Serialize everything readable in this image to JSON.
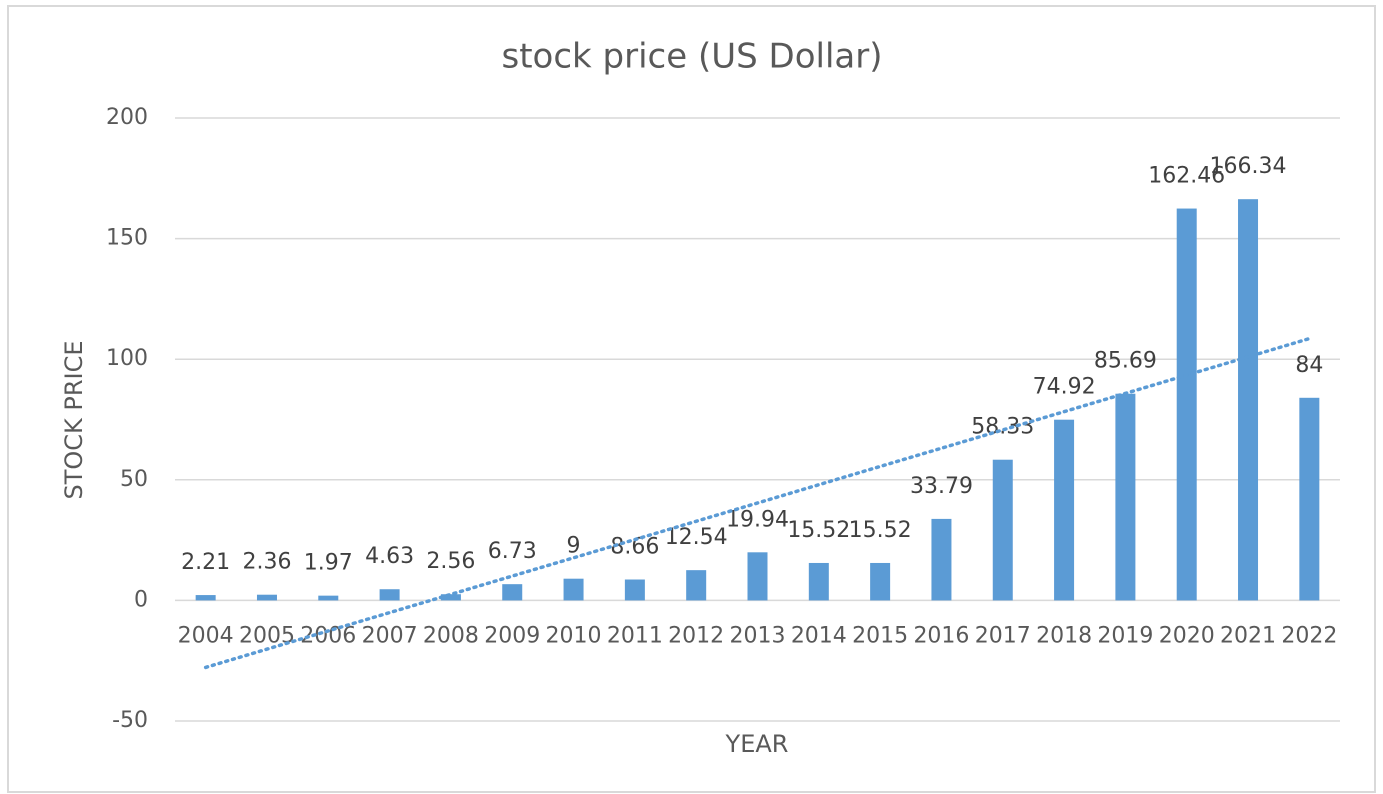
{
  "chart_data": {
    "type": "bar",
    "title": "stock price (US Dollar)",
    "x_label": "YEAR",
    "y_label": "STOCK PRICE",
    "categories": [
      "2004",
      "2005",
      "2006",
      "2007",
      "2008",
      "2009",
      "2010",
      "2011",
      "2012",
      "2013",
      "2014",
      "2015",
      "2016",
      "2017",
      "2018",
      "2019",
      "2020",
      "2021",
      "2022"
    ],
    "values": [
      2.21,
      2.36,
      1.97,
      4.63,
      2.56,
      6.73,
      9,
      8.66,
      12.54,
      19.94,
      15.52,
      15.52,
      33.79,
      58.33,
      74.92,
      85.69,
      162.46,
      166.34,
      84
    ],
    "color": "#5b9bd5",
    "ylim": [
      -50,
      200
    ],
    "yticks": [
      -50,
      0,
      50,
      100,
      150,
      200
    ],
    "grid": true,
    "trendline": "linear"
  }
}
